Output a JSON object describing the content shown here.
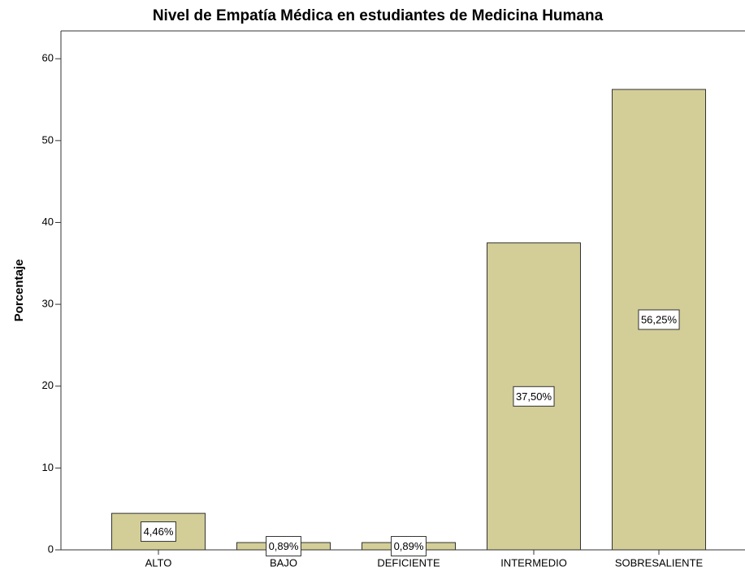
{
  "chart_data": {
    "type": "bar",
    "title": "Nivel de Empatía Médica en estudiantes de Medicina Humana",
    "y_label": "Porcentaje",
    "categories": [
      "ALTO",
      "BAJO",
      "DEFICIENTE",
      "INTERMEDIO",
      "SOBRESALIENTE"
    ],
    "values": [
      4.46,
      0.89,
      0.89,
      37.5,
      56.25
    ],
    "value_labels": [
      "4,46%",
      "0,89%",
      "0,89%",
      "37,50%",
      "56,25%"
    ],
    "color": "#d3ce97",
    "ylim": [
      0,
      63.4
    ],
    "yticks": [
      0,
      10,
      20,
      30,
      40,
      50,
      60
    ],
    "grid": false
  }
}
